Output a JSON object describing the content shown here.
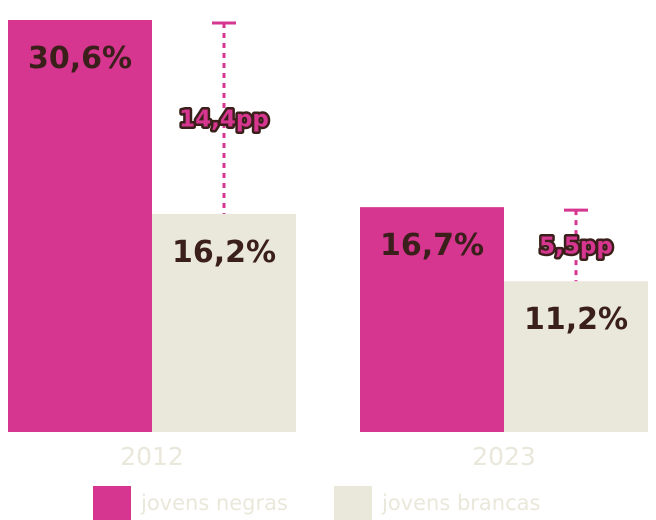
{
  "chart_data": {
    "type": "bar",
    "categories": [
      "2012",
      "2023"
    ],
    "series": [
      {
        "name": "jovens negras",
        "values": [
          30.6,
          16.7
        ],
        "labels": [
          "30,6%",
          "16,7%"
        ],
        "color": "#d63590"
      },
      {
        "name": "jovens brancas",
        "values": [
          16.2,
          11.2
        ],
        "labels": [
          "16,2%",
          "11,2%"
        ],
        "color": "#eae7db"
      }
    ],
    "differences": [
      {
        "category": "2012",
        "value": 14.4,
        "label": "14,4pp"
      },
      {
        "category": "2023",
        "value": 5.5,
        "label": "5,5pp"
      }
    ],
    "ylim": [
      0,
      31
    ],
    "grid": false,
    "legend_position": "bottom"
  },
  "colors": {
    "negras": "#d63590",
    "brancas": "#eae7db",
    "label_text": "#3a1f1a"
  }
}
